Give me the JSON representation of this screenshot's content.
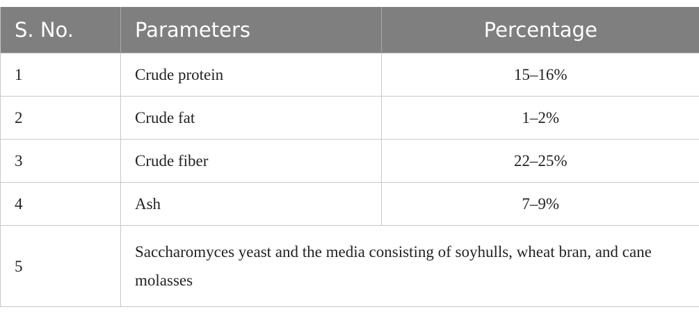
{
  "table": {
    "header": [
      "S. No.",
      "Parameters",
      "Percentage"
    ],
    "rows": [
      [
        "1",
        "Crude protein",
        "15–16%"
      ],
      [
        "2",
        "Crude fat",
        "1–2%"
      ],
      [
        "3",
        "Crude fiber",
        "22–25%"
      ],
      [
        "4",
        "Ash",
        "7–9%"
      ],
      [
        "5",
        "Saccharomyces yeast and the media consisting of soyhulls, wheat bran, and cane molasses"
      ]
    ]
  }
}
